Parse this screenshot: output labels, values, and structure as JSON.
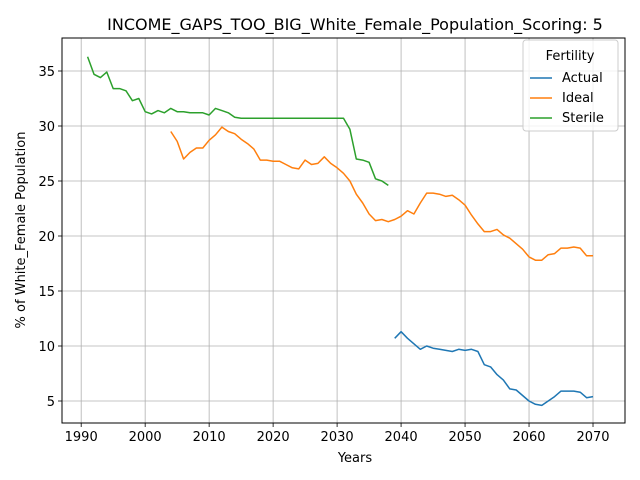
{
  "chart_data": {
    "type": "line",
    "title": "INCOME_GAPS_TOO_BIG_White_Female_Population_Scoring: 5",
    "xlabel": "Years",
    "ylabel": "% of White_Female Population",
    "xlim": [
      1987,
      2075
    ],
    "ylim": [
      3,
      38
    ],
    "xticks": [
      1990,
      2000,
      2010,
      2020,
      2030,
      2040,
      2050,
      2060,
      2070
    ],
    "yticks": [
      5,
      10,
      15,
      20,
      25,
      30,
      35
    ],
    "grid": true,
    "legend": {
      "title": "Fertility",
      "position": "top-right"
    },
    "series": [
      {
        "name": "Actual",
        "color": "#1f77b4",
        "x": [
          2039,
          2040,
          2041,
          2042,
          2043,
          2044,
          2045,
          2046,
          2047,
          2048,
          2049,
          2050,
          2051,
          2052,
          2053,
          2054,
          2055,
          2056,
          2057,
          2058,
          2059,
          2060,
          2061,
          2062,
          2063,
          2064,
          2065,
          2066,
          2067,
          2068,
          2069,
          2070
        ],
        "y": [
          10.7,
          11.3,
          10.7,
          10.2,
          9.7,
          10.0,
          9.8,
          9.7,
          9.6,
          9.5,
          9.7,
          9.6,
          9.7,
          9.5,
          8.3,
          8.1,
          7.4,
          6.9,
          6.1,
          6.0,
          5.5,
          5.0,
          4.7,
          4.6,
          5.0,
          5.4,
          5.9,
          5.9,
          5.9,
          5.8,
          5.3,
          5.4
        ]
      },
      {
        "name": "Ideal",
        "color": "#ff7f0e",
        "x": [
          2004,
          2005,
          2006,
          2007,
          2008,
          2009,
          2010,
          2011,
          2012,
          2013,
          2014,
          2015,
          2016,
          2017,
          2018,
          2019,
          2020,
          2021,
          2022,
          2023,
          2024,
          2025,
          2026,
          2027,
          2028,
          2029,
          2030,
          2031,
          2032,
          2033,
          2034,
          2035,
          2036,
          2037,
          2038,
          2039,
          2040,
          2041,
          2042,
          2043,
          2044,
          2045,
          2046,
          2047,
          2048,
          2049,
          2050,
          2051,
          2052,
          2053,
          2054,
          2055,
          2056,
          2057,
          2058,
          2059,
          2060,
          2061,
          2062,
          2063,
          2064,
          2065,
          2066,
          2067,
          2068,
          2069,
          2070
        ],
        "y": [
          29.5,
          28.6,
          27.0,
          27.6,
          28.0,
          28.0,
          28.7,
          29.2,
          29.9,
          29.5,
          29.3,
          28.8,
          28.4,
          27.9,
          26.9,
          26.9,
          26.8,
          26.8,
          26.5,
          26.2,
          26.1,
          26.9,
          26.5,
          26.6,
          27.2,
          26.6,
          26.2,
          25.7,
          25.0,
          23.8,
          23.0,
          22.0,
          21.4,
          21.5,
          21.3,
          21.5,
          21.8,
          22.3,
          22.0,
          23.0,
          23.9,
          23.9,
          23.8,
          23.6,
          23.7,
          23.3,
          22.8,
          21.9,
          21.1,
          20.4,
          20.4,
          20.6,
          20.1,
          19.8,
          19.3,
          18.8,
          18.1,
          17.8,
          17.8,
          18.3,
          18.4,
          18.9,
          18.9,
          19.0,
          18.9,
          18.2,
          18.2
        ]
      },
      {
        "name": "Sterile",
        "color": "#2ca02c",
        "x": [
          1991,
          1992,
          1993,
          1994,
          1995,
          1996,
          1997,
          1998,
          1999,
          2000,
          2001,
          2002,
          2003,
          2004,
          2005,
          2006,
          2007,
          2008,
          2009,
          2010,
          2011,
          2012,
          2013,
          2014,
          2015,
          2016,
          2017,
          2018,
          2019,
          2020,
          2021,
          2022,
          2023,
          2024,
          2025,
          2026,
          2027,
          2028,
          2029,
          2030,
          2031,
          2032,
          2033,
          2034,
          2035,
          2036,
          2037,
          2038
        ],
        "y": [
          36.3,
          34.7,
          34.4,
          34.9,
          33.4,
          33.4,
          33.2,
          32.3,
          32.5,
          31.3,
          31.1,
          31.4,
          31.2,
          31.6,
          31.3,
          31.3,
          31.2,
          31.2,
          31.2,
          31.0,
          31.6,
          31.4,
          31.2,
          30.8,
          30.7,
          30.7,
          30.7,
          30.7,
          30.7,
          30.7,
          30.7,
          30.7,
          30.7,
          30.7,
          30.7,
          30.7,
          30.7,
          30.7,
          30.7,
          30.7,
          30.7,
          29.7,
          27.0,
          26.9,
          26.7,
          25.2,
          25.0,
          24.6
        ]
      }
    ]
  }
}
